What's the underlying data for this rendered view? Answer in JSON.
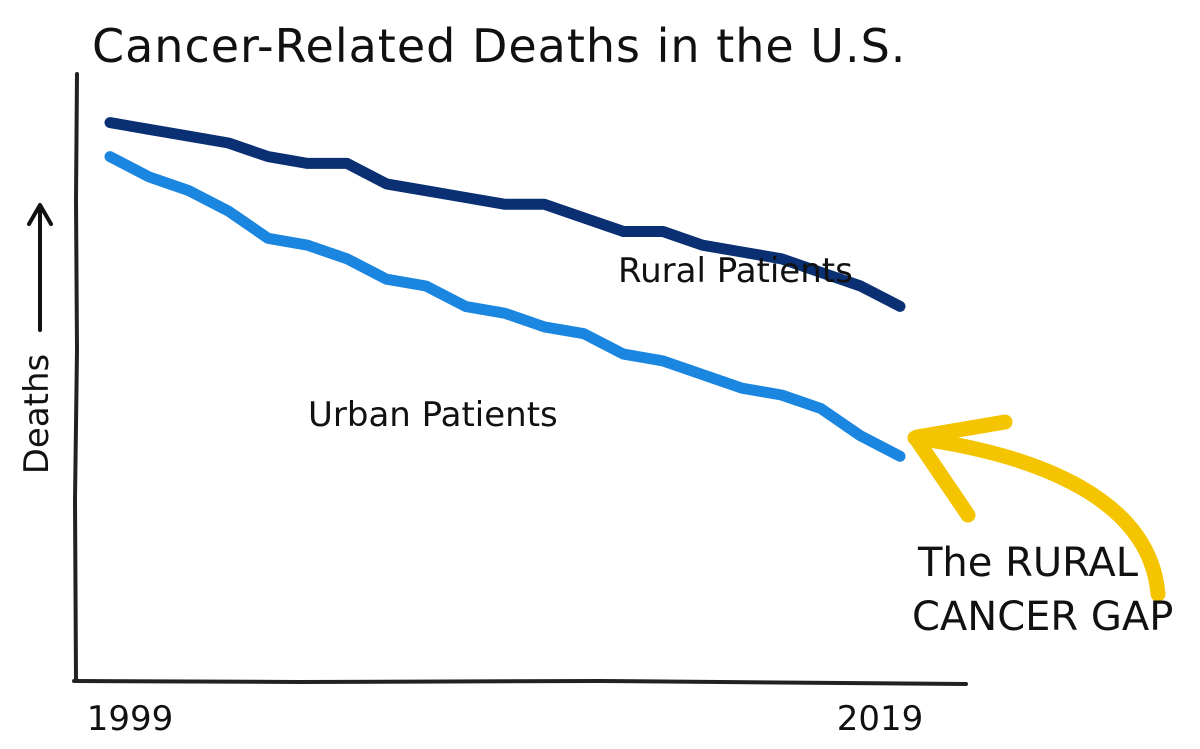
{
  "chart_data": {
    "type": "line",
    "title": "Cancer-Related Deaths in the U.S.",
    "ylabel": "Deaths",
    "xlabel": "",
    "x_ticks": [
      "1999",
      "2019"
    ],
    "x": [
      1999,
      2000,
      2001,
      2002,
      2003,
      2004,
      2005,
      2006,
      2007,
      2008,
      2009,
      2010,
      2011,
      2012,
      2013,
      2014,
      2015,
      2016,
      2017,
      2018,
      2019
    ],
    "xlim": [
      1999,
      2019
    ],
    "ylim": [
      0,
      100
    ],
    "grid": false,
    "legend": "none",
    "series": [
      {
        "name": "Rural Patients",
        "color": "#0a2f73",
        "values": [
          82,
          81,
          80,
          79,
          77,
          76,
          76,
          73,
          72,
          71,
          70,
          70,
          68,
          66,
          66,
          64,
          63,
          62,
          60,
          58,
          55
        ]
      },
      {
        "name": "Urban Patients",
        "color": "#1a86e0",
        "values": [
          77,
          74,
          72,
          69,
          65,
          64,
          62,
          59,
          58,
          55,
          54,
          52,
          51,
          48,
          47,
          45,
          43,
          42,
          40,
          36,
          33
        ]
      }
    ],
    "annotations": {
      "gap_text_line1": "The RURAL",
      "gap_text_line2": "CANCER GAP",
      "arrow_color": "#f5c400"
    }
  }
}
